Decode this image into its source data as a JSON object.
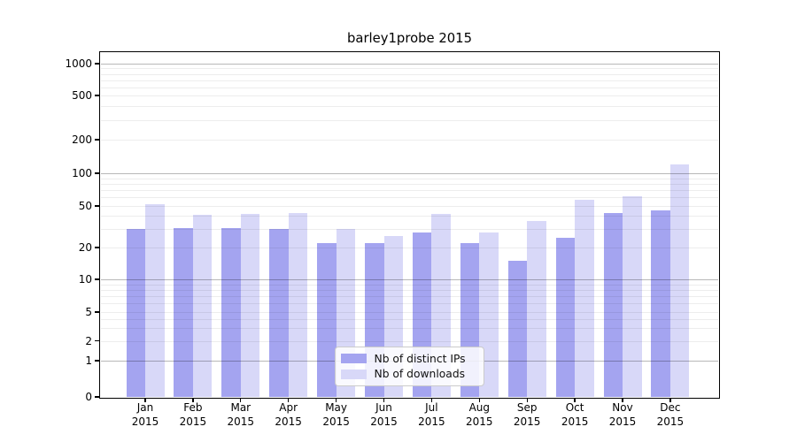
{
  "chart_data": {
    "type": "bar",
    "title": "barley1probe 2015",
    "year_label": "2015",
    "categories": [
      "Jan",
      "Feb",
      "Mar",
      "Apr",
      "May",
      "Jun",
      "Jul",
      "Aug",
      "Sep",
      "Oct",
      "Nov",
      "Dec"
    ],
    "series": [
      {
        "name": "Nb of distinct IPs",
        "color": "#a4a4f0",
        "values": [
          30,
          31,
          31,
          30,
          22,
          22,
          28,
          22,
          15,
          25,
          43,
          45
        ]
      },
      {
        "name": "Nb of downloads",
        "color": "#d8d8f8",
        "values": [
          52,
          41,
          42,
          43,
          30,
          26,
          42,
          28,
          36,
          57,
          61,
          120
        ]
      }
    ],
    "y_ticks": [
      0,
      1,
      2,
      5,
      10,
      20,
      50,
      100,
      200,
      500,
      1000
    ],
    "y_scale": "symlog",
    "ylim": [
      0,
      1400
    ],
    "grid": true,
    "minor_grid": true,
    "legend_position": "lower center",
    "xlabel": "",
    "ylabel": ""
  },
  "colors": {
    "background": "#ffffff",
    "spine": "#000000",
    "major_grid": "#b9b9b9",
    "minor_grid": "#ededed",
    "text": "#000000"
  }
}
